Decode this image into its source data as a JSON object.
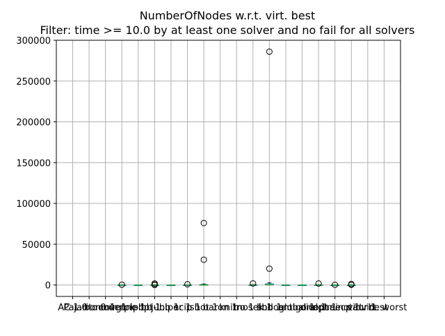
{
  "chart_data": {
    "type": "boxplot",
    "title": "NumberOfNodes w.r.t. virt. best",
    "subtitle": "Filter: time >= 10.0 by at least one solver and no fail for all solvers",
    "xlabel": "",
    "ylabel": "",
    "ylim": [
      -14000,
      300000
    ],
    "yticks": [
      0,
      50000,
      100000,
      150000,
      200000,
      250000,
      300000
    ],
    "ytick_labels": [
      "0",
      "50000",
      "100000",
      "150000",
      "200000",
      "250000",
      "300000"
    ],
    "grid": true,
    "categories": [
      "AC 1.0",
      "Pajarito 0.4",
      "bonmin 1",
      "couenne 1",
      "glpk-lbb 1",
      "ipopt-lbb 1",
      "juniper 1",
      "scip 1",
      "shot 1",
      "baron 1",
      "knitro 1",
      "mosek 1",
      "sbb 1",
      "lindoglobal 1",
      "antigone 1",
      "dicopt 1",
      "alphaecp 1",
      "minotaur 1",
      "virt. best",
      "virt. worst"
    ],
    "boxes": [
      {
        "category": "AC 1.0",
        "median": null,
        "q1": null,
        "q3": null,
        "whisker_low": null,
        "whisker_high": null,
        "outliers": []
      },
      {
        "category": "Pajarito 0.4",
        "median": null,
        "q1": null,
        "q3": null,
        "whisker_low": null,
        "whisker_high": null,
        "outliers": []
      },
      {
        "category": "bonmin 1",
        "median": null,
        "q1": null,
        "q3": null,
        "whisker_low": null,
        "whisker_high": null,
        "outliers": []
      },
      {
        "category": "couenne 1",
        "median": 30,
        "q1": 0,
        "q3": 120,
        "whisker_low": 0,
        "whisker_high": 250,
        "outliers": [
          400
        ]
      },
      {
        "category": "glpk-lbb 1",
        "median": 10,
        "q1": 0,
        "q3": 40,
        "whisker_low": 0,
        "whisker_high": 90,
        "outliers": []
      },
      {
        "category": "ipopt-lbb 1",
        "median": 40,
        "q1": 0,
        "q3": 150,
        "whisker_low": 0,
        "whisker_high": 300,
        "outliers": [
          600,
          1900,
          100
        ]
      },
      {
        "category": "juniper 1",
        "median": 10,
        "q1": 0,
        "q3": 30,
        "whisker_low": 0,
        "whisker_high": 70,
        "outliers": []
      },
      {
        "category": "scip 1",
        "median": 20,
        "q1": 0,
        "q3": 100,
        "whisker_low": 0,
        "whisker_high": 200,
        "outliers": [
          900
        ]
      },
      {
        "category": "shot 1",
        "median": 80,
        "q1": 0,
        "q3": 600,
        "whisker_low": 0,
        "whisker_high": 1200,
        "outliers": [
          31000,
          76000
        ]
      },
      {
        "category": "baron 1",
        "median": null,
        "q1": null,
        "q3": null,
        "whisker_low": null,
        "whisker_high": null,
        "outliers": []
      },
      {
        "category": "knitro 1",
        "median": null,
        "q1": null,
        "q3": null,
        "whisker_low": null,
        "whisker_high": null,
        "outliers": []
      },
      {
        "category": "mosek 1",
        "median": 50,
        "q1": 0,
        "q3": 200,
        "whisker_low": 0,
        "whisker_high": 500,
        "outliers": [
          2000
        ]
      },
      {
        "category": "sbb 1",
        "median": 200,
        "q1": 0,
        "q3": 1400,
        "whisker_low": 0,
        "whisker_high": 2800,
        "outliers": [
          20000,
          286000
        ]
      },
      {
        "category": "lindoglobal 1",
        "median": 10,
        "q1": 0,
        "q3": 50,
        "whisker_low": 0,
        "whisker_high": 100,
        "outliers": []
      },
      {
        "category": "antigone 1",
        "median": 10,
        "q1": 0,
        "q3": 40,
        "whisker_low": 0,
        "whisker_high": 90,
        "outliers": []
      },
      {
        "category": "dicopt 1",
        "median": 30,
        "q1": 0,
        "q3": 200,
        "whisker_low": 0,
        "whisker_high": 400,
        "outliers": [
          1900
        ]
      },
      {
        "category": "alphaecp 1",
        "median": 10,
        "q1": 0,
        "q3": 40,
        "whisker_low": 0,
        "whisker_high": 90,
        "outliers": [
          300
        ]
      },
      {
        "category": "minotaur 1",
        "median": 20,
        "q1": 0,
        "q3": 100,
        "whisker_low": 0,
        "whisker_high": 200,
        "outliers": [
          1200,
          300
        ]
      },
      {
        "category": "virt. best",
        "median": null,
        "q1": null,
        "q3": null,
        "whisker_low": null,
        "whisker_high": null,
        "outliers": []
      },
      {
        "category": "virt. worst",
        "median": null,
        "q1": null,
        "q3": null,
        "whisker_low": null,
        "whisker_high": null,
        "outliers": []
      }
    ],
    "colors": {
      "box": "#1f77b4",
      "median": "#2ca02c",
      "grid": "#b0b0b0",
      "axis": "#000000"
    }
  }
}
